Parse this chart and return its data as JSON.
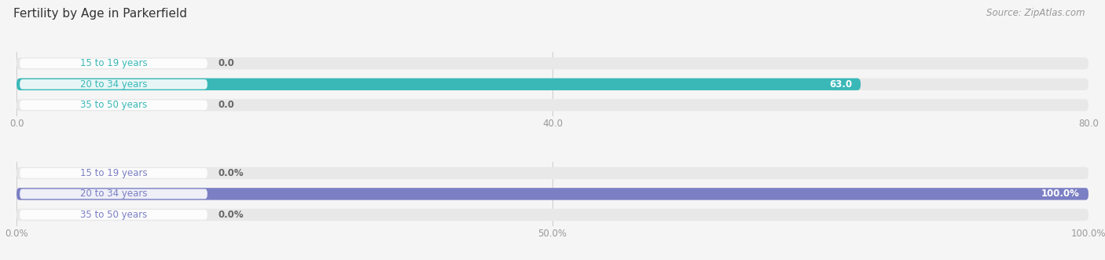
{
  "title": "Fertility by Age in Parkerfield",
  "source": "Source: ZipAtlas.com",
  "top_chart": {
    "categories": [
      "15 to 19 years",
      "20 to 34 years",
      "35 to 50 years"
    ],
    "values": [
      0.0,
      63.0,
      0.0
    ],
    "max_value": 80.0,
    "tick_values": [
      0.0,
      40.0,
      80.0
    ],
    "tick_labels": [
      "0.0",
      "40.0",
      "80.0"
    ],
    "bar_color": "#3ab8b8",
    "bar_bg_color": "#e8e8e8",
    "value_labels": [
      "0.0",
      "63.0",
      "0.0"
    ]
  },
  "bottom_chart": {
    "categories": [
      "15 to 19 years",
      "20 to 34 years",
      "35 to 50 years"
    ],
    "values": [
      0.0,
      100.0,
      0.0
    ],
    "max_value": 100.0,
    "tick_values": [
      0.0,
      50.0,
      100.0
    ],
    "tick_labels": [
      "0.0%",
      "50.0%",
      "100.0%"
    ],
    "bar_color": "#7b7fc4",
    "bar_bg_color": "#e8e8e8",
    "value_labels": [
      "0.0%",
      "100.0%",
      "0.0%"
    ]
  },
  "background_color": "#f5f5f5",
  "title_fontsize": 11,
  "label_fontsize": 8.5,
  "tick_fontsize": 8.5,
  "source_fontsize": 8.5,
  "bar_height": 0.58
}
